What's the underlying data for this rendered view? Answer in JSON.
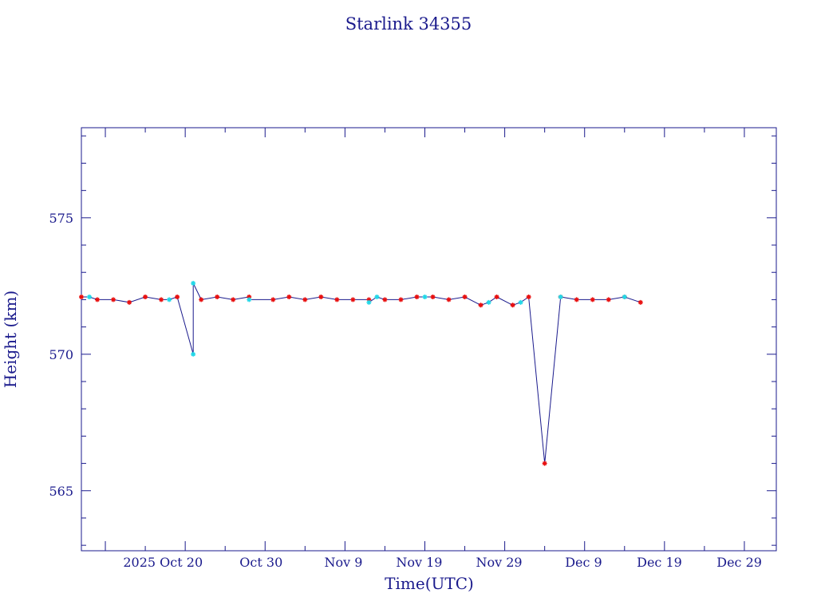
{
  "chart_data": {
    "type": "scatter",
    "title": "Starlink 34355",
    "xlabel": "Time(UTC)",
    "ylabel": "Height (km)",
    "x_type": "date",
    "xlim": [
      "2025-10-07",
      "2026-01-02"
    ],
    "ylim": [
      562.8,
      578.3
    ],
    "x_ticks": [
      {
        "date": "2025-10-20",
        "label": "2025 Oct 20"
      },
      {
        "date": "2025-10-30",
        "label": "Oct 30"
      },
      {
        "date": "2025-11-09",
        "label": "Nov  9"
      },
      {
        "date": "2025-11-19",
        "label": "Nov 19"
      },
      {
        "date": "2025-11-29",
        "label": "Nov 29"
      },
      {
        "date": "2025-12-09",
        "label": "Dec  9"
      },
      {
        "date": "2025-12-19",
        "label": "Dec 19"
      },
      {
        "date": "2025-12-29",
        "label": "Dec 29"
      }
    ],
    "y_ticks": [
      {
        "value": 565,
        "label": "565"
      },
      {
        "value": 570,
        "label": "570"
      },
      {
        "value": 575,
        "label": "575"
      }
    ],
    "grid": false,
    "legend": "none",
    "colors": {
      "axes": "#1a1a8c",
      "line": "#1a1a8c",
      "primary_markers": "#e81010",
      "secondary_markers": "#22d8e8"
    },
    "series": [
      {
        "marker": "red-star",
        "points": [
          [
            "2025-10-07",
            572.1
          ],
          [
            "2025-10-09",
            572.0
          ],
          [
            "2025-10-11",
            572.0
          ],
          [
            "2025-10-13",
            571.9
          ],
          [
            "2025-10-15",
            572.1
          ],
          [
            "2025-10-17",
            572.0
          ],
          [
            "2025-10-19",
            572.1
          ],
          [
            "2025-10-22",
            572.0
          ],
          [
            "2025-10-24",
            572.1
          ],
          [
            "2025-10-26",
            572.0
          ],
          [
            "2025-10-28",
            572.1
          ],
          [
            "2025-10-31",
            572.0
          ],
          [
            "2025-11-02",
            572.1
          ],
          [
            "2025-11-04",
            572.0
          ],
          [
            "2025-11-06",
            572.1
          ],
          [
            "2025-11-08",
            572.0
          ],
          [
            "2025-11-10",
            572.0
          ],
          [
            "2025-11-12",
            572.0
          ],
          [
            "2025-11-14",
            572.0
          ],
          [
            "2025-11-16",
            572.0
          ],
          [
            "2025-11-18",
            572.1
          ],
          [
            "2025-11-20",
            572.1
          ],
          [
            "2025-11-22",
            572.0
          ],
          [
            "2025-11-24",
            572.1
          ],
          [
            "2025-11-26",
            571.8
          ],
          [
            "2025-11-28",
            572.1
          ],
          [
            "2025-11-30",
            571.8
          ],
          [
            "2025-12-02",
            572.1
          ],
          [
            "2025-12-04",
            566.0
          ],
          [
            "2025-12-06",
            572.1
          ],
          [
            "2025-12-08",
            572.0
          ],
          [
            "2025-12-10",
            572.0
          ],
          [
            "2025-12-12",
            572.0
          ],
          [
            "2025-12-14",
            572.1
          ],
          [
            "2025-12-16",
            571.9
          ]
        ]
      },
      {
        "marker": "cyan-star",
        "points": [
          [
            "2025-10-08",
            572.1
          ],
          [
            "2025-10-18",
            572.0
          ],
          [
            "2025-10-21",
            570.0
          ],
          [
            "2025-10-21",
            572.6
          ],
          [
            "2025-10-28",
            572.0
          ],
          [
            "2025-11-12",
            571.9
          ],
          [
            "2025-11-13",
            572.1
          ],
          [
            "2025-11-19",
            572.1
          ],
          [
            "2025-11-27",
            571.9
          ],
          [
            "2025-12-01",
            571.9
          ],
          [
            "2025-12-06",
            572.1
          ],
          [
            "2025-12-14",
            572.1
          ]
        ]
      }
    ]
  }
}
